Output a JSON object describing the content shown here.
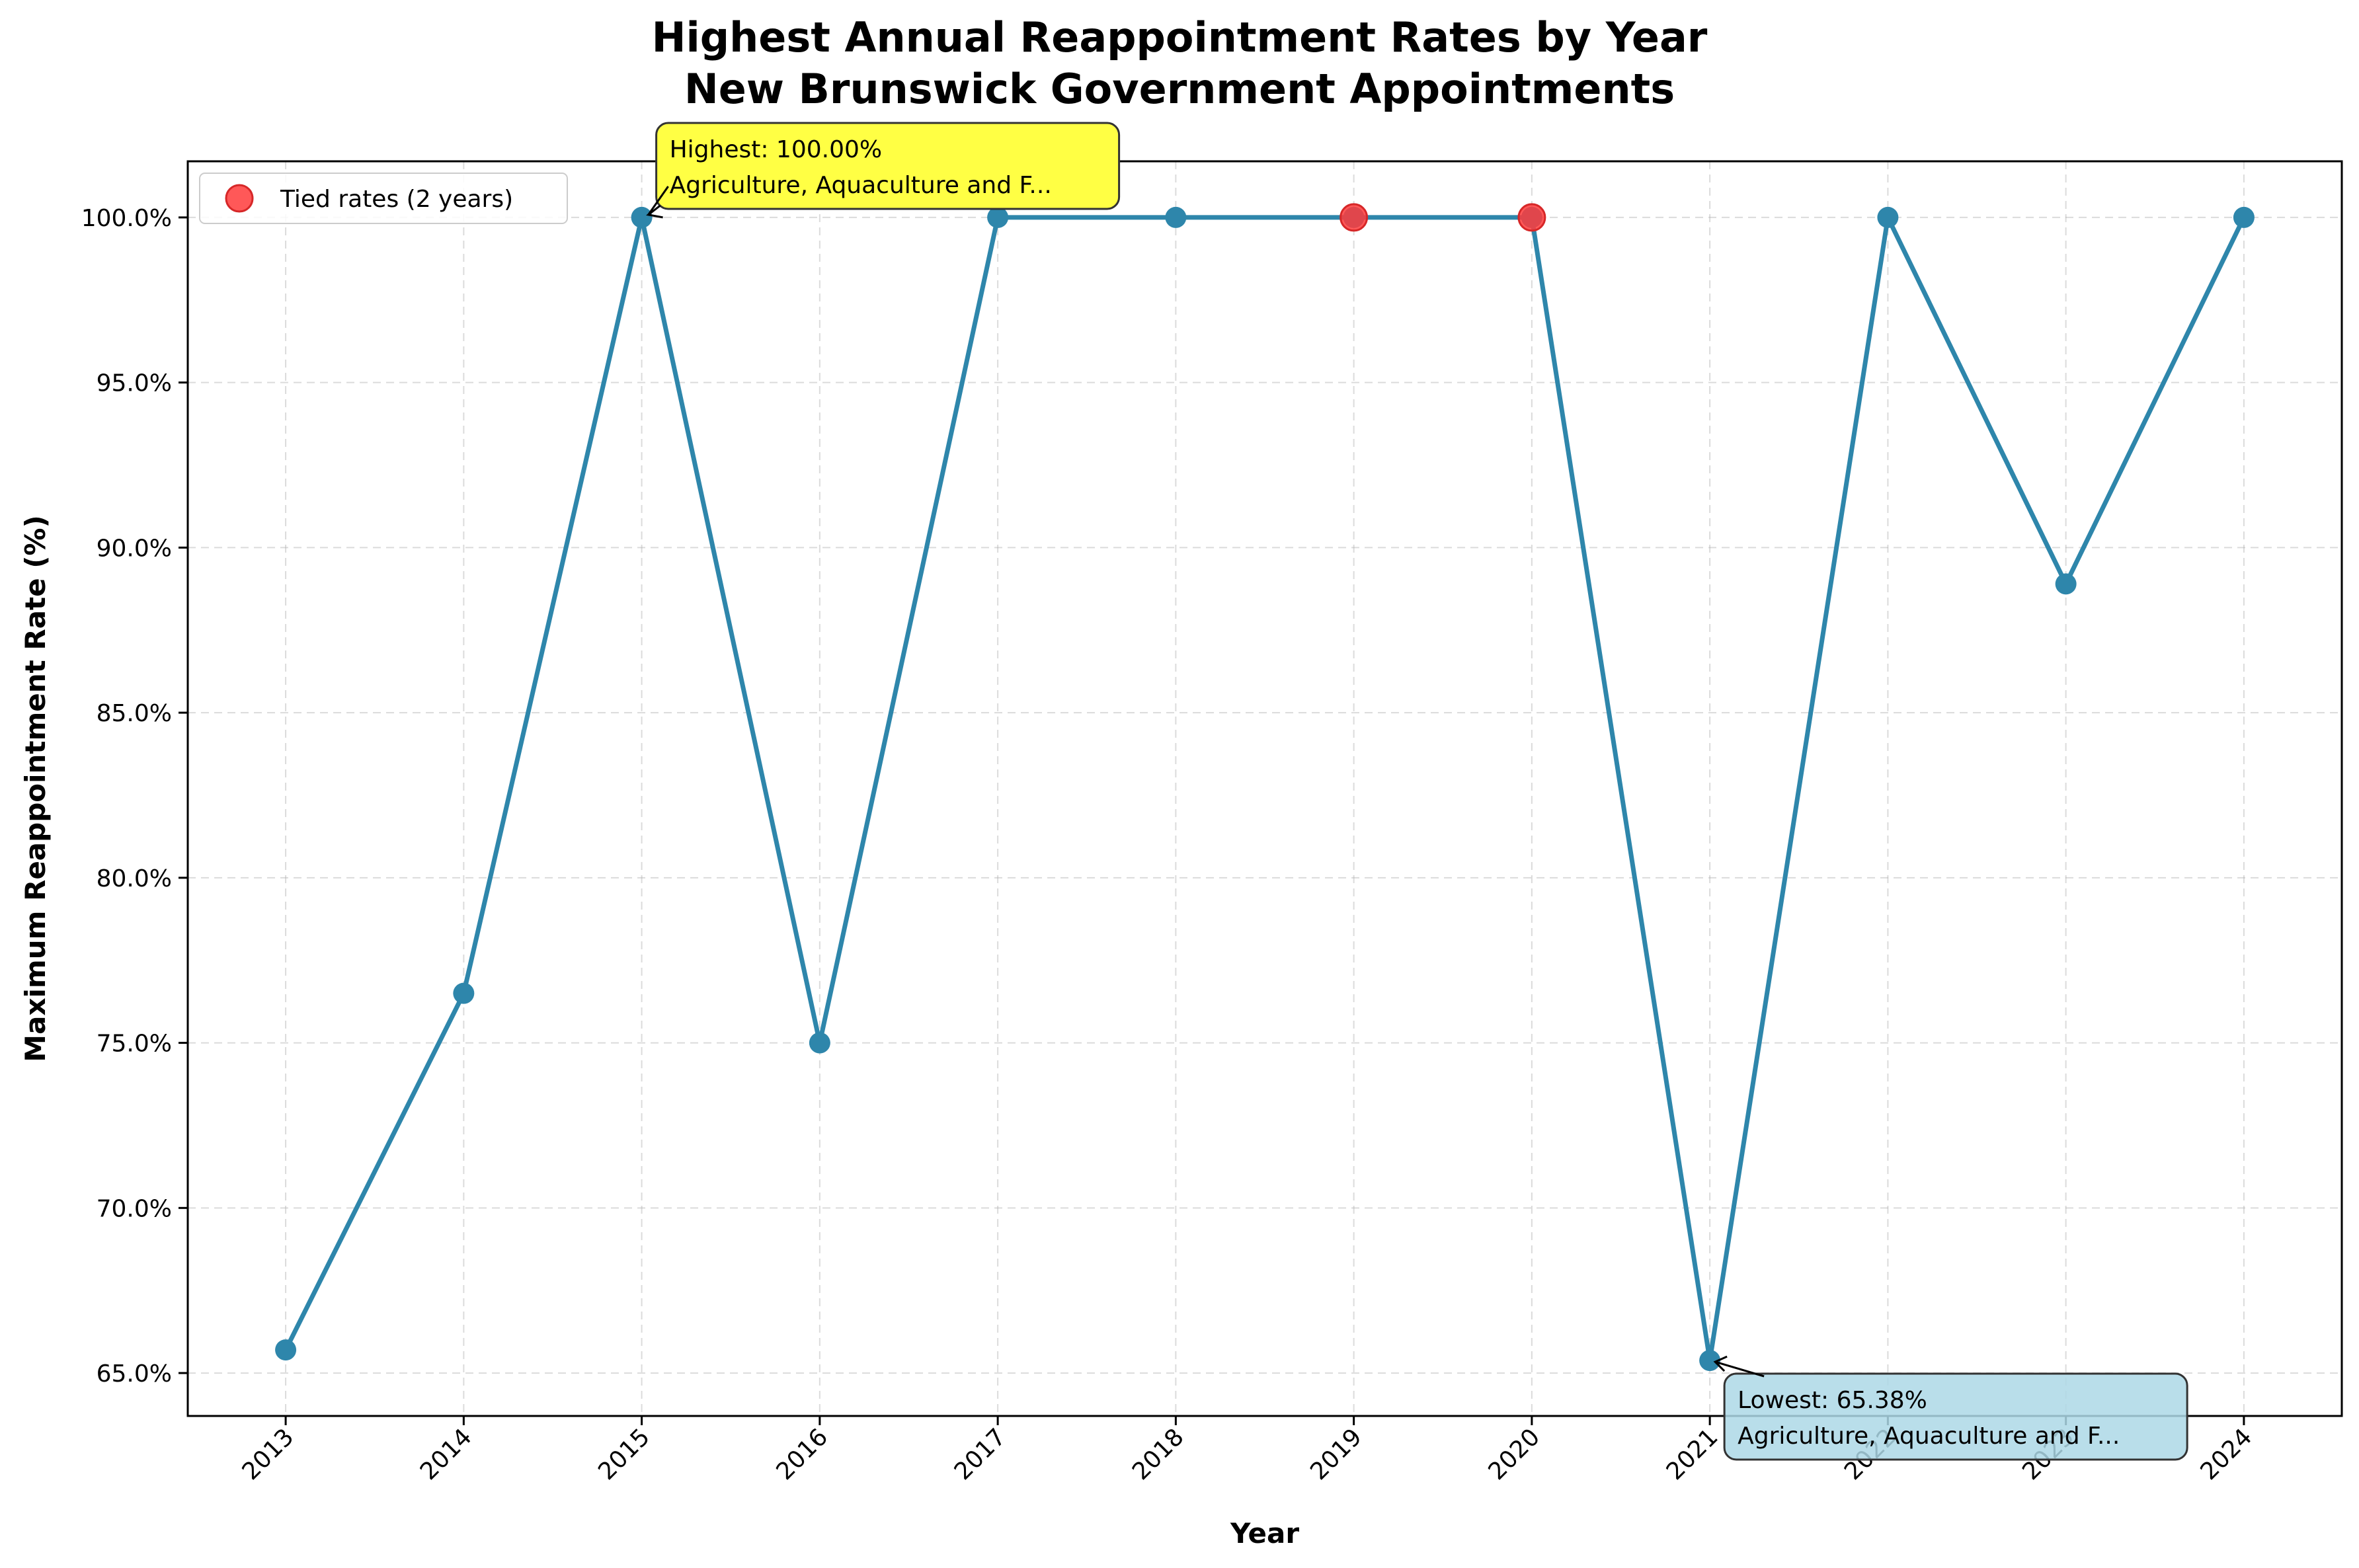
{
  "chart_data": {
    "type": "line",
    "title": "Highest Annual Reappointment Rates by Year",
    "subtitle": "New Brunswick Government Appointments",
    "xlabel": "Year",
    "ylabel": "Maximum Reappointment Rate (%)",
    "x": [
      2013,
      2014,
      2015,
      2016,
      2017,
      2018,
      2019,
      2020,
      2021,
      2022,
      2023,
      2024
    ],
    "x_tick_labels": [
      "2013",
      "2014",
      "2015",
      "2016",
      "2017",
      "2018",
      "2019",
      "2020",
      "2021",
      "2022",
      "2023",
      "2024"
    ],
    "series": [
      {
        "values": [
          65.7,
          76.5,
          100.0,
          75.0,
          100.0,
          100.0,
          100.0,
          100.0,
          65.38,
          100.0,
          88.9,
          100.0
        ],
        "color": "#2e86ab"
      }
    ],
    "highlighted_points": {
      "name": "Tied rates (2 years)",
      "x": [
        2019,
        2020
      ],
      "y": [
        100.0,
        100.0
      ],
      "color": "#ff3b3b"
    },
    "y_ticks": [
      65,
      70,
      75,
      80,
      85,
      90,
      95,
      100
    ],
    "y_tick_labels": [
      "65.0%",
      "70.0%",
      "75.0%",
      "80.0%",
      "85.0%",
      "90.0%",
      "95.0%",
      "100.0%"
    ],
    "ylim": [
      63.7,
      101.7
    ],
    "xlim": [
      2012.45,
      2024.55
    ],
    "grid": true,
    "legend_position": "top-left",
    "annotations": [
      {
        "kind": "highest",
        "x": 2015,
        "y": 100.0,
        "line1": "Highest: 100.00%",
        "line2": "Agriculture, Aquaculture and F...",
        "box_color": "#ffff44"
      },
      {
        "kind": "lowest",
        "x": 2021,
        "y": 65.38,
        "line1": "Lowest: 65.38%",
        "line2": "Agriculture, Aquaculture and F...",
        "box_color": "#add8e6"
      }
    ]
  }
}
